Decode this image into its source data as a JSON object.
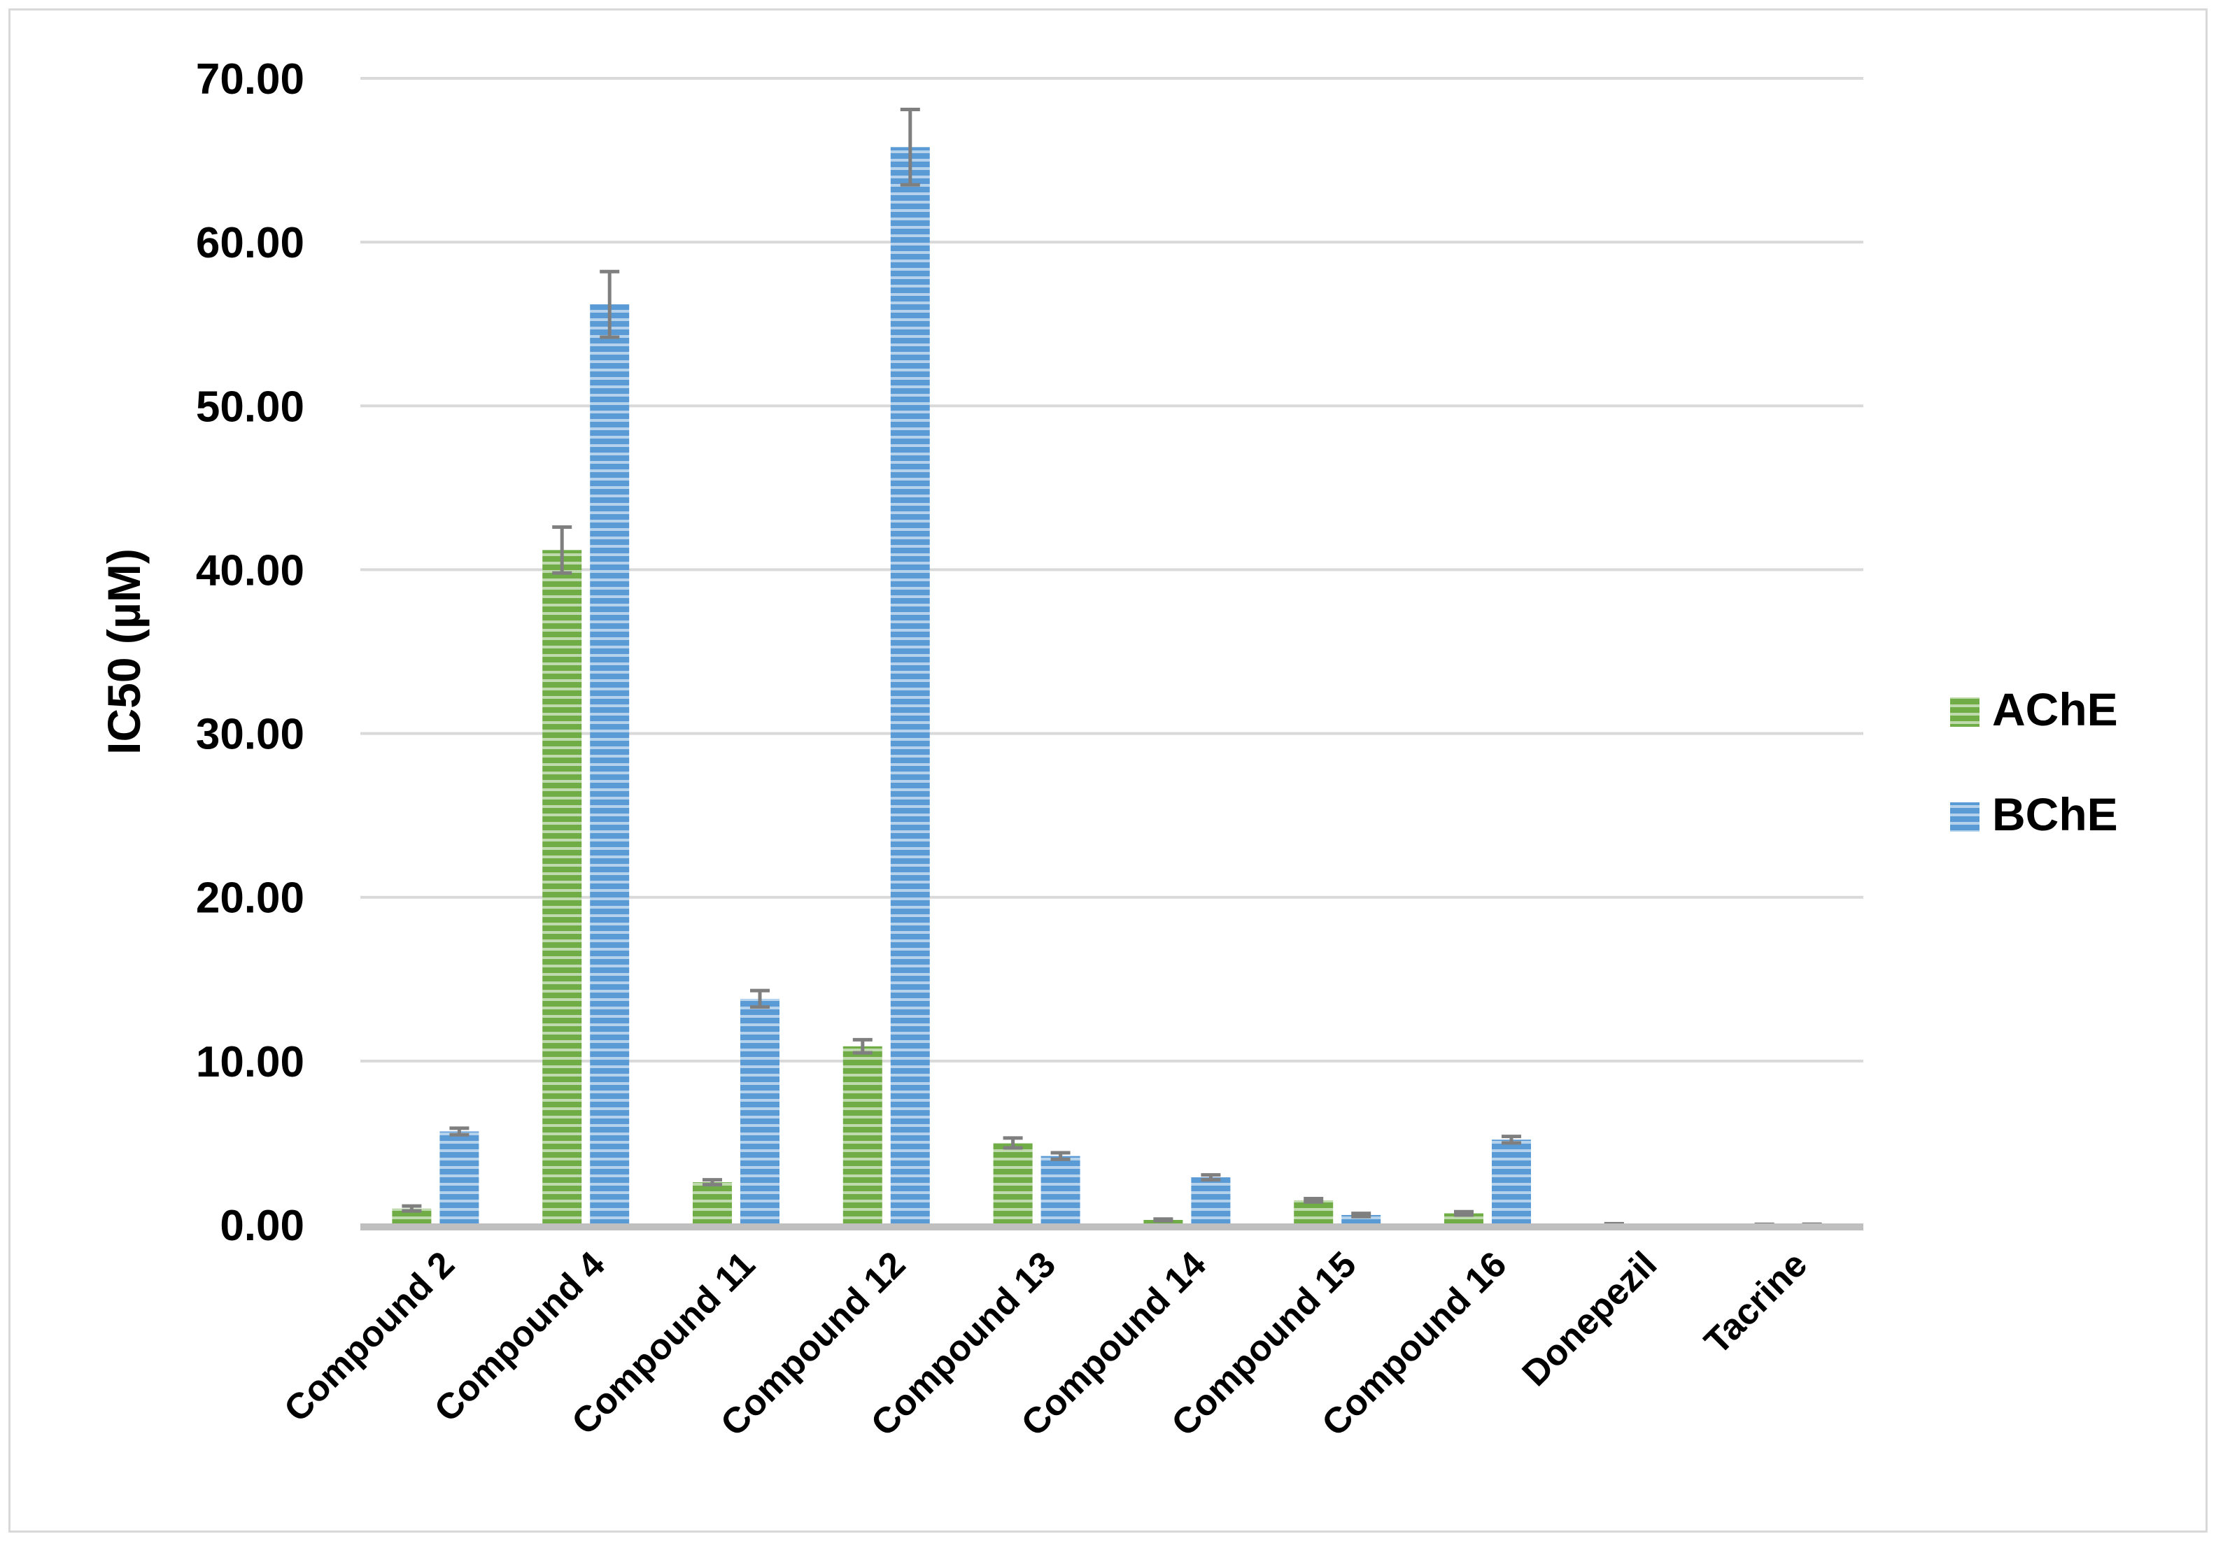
{
  "chart_data": {
    "type": "bar",
    "categories": [
      "Compound 2",
      "Compound 4",
      "Compound 11",
      "Compound 12",
      "Compound 13",
      "Compound 14",
      "Compound 15",
      "Compound 16",
      "Donepezil",
      "Tacrine"
    ],
    "series": [
      {
        "name": "AChE",
        "color": "#70ad47",
        "values": [
          1.0,
          41.2,
          2.6,
          10.9,
          5.0,
          0.3,
          1.5,
          0.7,
          0.05,
          0.02
        ],
        "errors": [
          0.15,
          1.4,
          0.15,
          0.4,
          0.3,
          0.05,
          0.1,
          0.1,
          0.02,
          0.01
        ]
      },
      {
        "name": "BChE",
        "color": "#5b9bd5",
        "values": [
          5.7,
          56.2,
          13.8,
          65.8,
          4.2,
          2.9,
          0.6,
          5.2,
          0.0,
          0.03
        ],
        "errors": [
          0.2,
          2.0,
          0.5,
          2.3,
          0.2,
          0.15,
          0.1,
          0.2,
          0.0,
          0.01
        ]
      }
    ],
    "ylabel": "IC50 (µM)",
    "xlabel": "",
    "title": "",
    "ylim": [
      0,
      70
    ],
    "yticks": [
      "0.00",
      "10.00",
      "20.00",
      "30.00",
      "40.00",
      "50.00",
      "60.00",
      "70.00"
    ],
    "grid": true,
    "legend_position": "right",
    "error_bar_color": "#7f7f7f"
  }
}
